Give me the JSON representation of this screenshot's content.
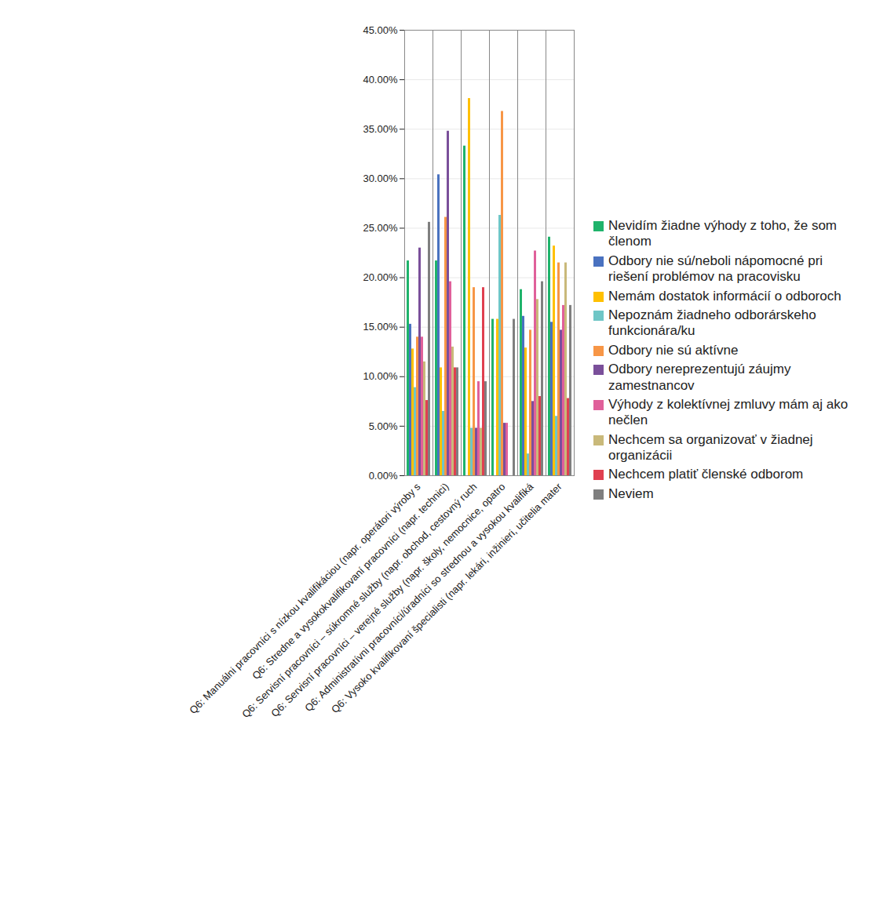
{
  "chart_data": {
    "type": "bar",
    "categories": [
      "Q6: Manuálni pracovníci s nízkou kvalifikáciou (napr. operátori výroby s",
      "Q6: Stredne a vysokokvalifikovaní pracovníci (napr. technici)",
      "Q6: Servisní pracovníci – súkromné služby (napr. obchod, cestovný ruch",
      "Q6: Servisní pracovníci – verejné služby (napr. školy, nemocnice, opatro",
      "Q6: Administratívni pracovníci/úradníci so strednou a vysokou kvalifiká",
      "Q6: Vysoko kvalifikovaní špecialisti (napr. lekári, inžinieri, učitelia mater"
    ],
    "series": [
      {
        "name": "Nevidím žiadne výhody z toho, že som členom",
        "color": "#1fb36b",
        "values": [
          21.7,
          21.7,
          33.3,
          15.8,
          18.8,
          24.1
        ]
      },
      {
        "name": "Odbory nie sú/neboli nápomocné pri riešení problémov na pracovisku",
        "color": "#4a72c0",
        "values": [
          15.3,
          30.4,
          0,
          0,
          16.1,
          15.5
        ]
      },
      {
        "name": "Nemám dostatok informácií o odboroch",
        "color": "#ffc000",
        "values": [
          12.8,
          10.9,
          38.1,
          15.8,
          12.9,
          23.2
        ]
      },
      {
        "name": "Nepoznám žiadneho odborárskeho funkcionára/ku",
        "color": "#6fc6c6",
        "values": [
          8.9,
          6.5,
          4.8,
          26.3,
          2.2,
          6.0
        ]
      },
      {
        "name": "Odbory nie sú aktívne",
        "color": "#f79646",
        "values": [
          14.0,
          26.1,
          19.0,
          36.8,
          14.7,
          21.5
        ]
      },
      {
        "name": "Odbory nereprezentujú záujmy zamestnancov",
        "color": "#7a4f9a",
        "values": [
          23.0,
          34.8,
          4.8,
          5.3,
          7.5,
          14.7
        ]
      },
      {
        "name": "Výhody z kolektívnej zmluvy mám aj ako nečlen",
        "color": "#e0609a",
        "values": [
          14.0,
          19.6,
          9.5,
          5.3,
          22.7,
          17.2
        ]
      },
      {
        "name": "Nechcem sa organizovať v žiadnej organizácii",
        "color": "#c9b97a",
        "values": [
          11.5,
          13.0,
          4.8,
          0,
          17.8,
          21.5
        ]
      },
      {
        "name": "Nechcem platiť členské odborom",
        "color": "#e04050",
        "values": [
          7.6,
          10.9,
          19.0,
          0,
          8.0,
          7.8
        ]
      },
      {
        "name": "Neviem",
        "color": "#7f7f7f",
        "values": [
          25.6,
          10.9,
          9.5,
          15.8,
          19.6,
          17.2
        ]
      }
    ],
    "ylim": [
      0,
      45
    ],
    "yticks": [
      {
        "value": 0,
        "label": "0.00%"
      },
      {
        "value": 5,
        "label": "5.00%"
      },
      {
        "value": 10,
        "label": "10.00%"
      },
      {
        "value": 15,
        "label": "15.00%"
      },
      {
        "value": 20,
        "label": "20.00%"
      },
      {
        "value": 25,
        "label": "25.00%"
      },
      {
        "value": 30,
        "label": "30.00%"
      },
      {
        "value": 35,
        "label": "35.00%"
      },
      {
        "value": 40,
        "label": "40.00%"
      },
      {
        "value": 45,
        "label": "45.00%"
      }
    ],
    "grid": true,
    "legend": "right"
  }
}
